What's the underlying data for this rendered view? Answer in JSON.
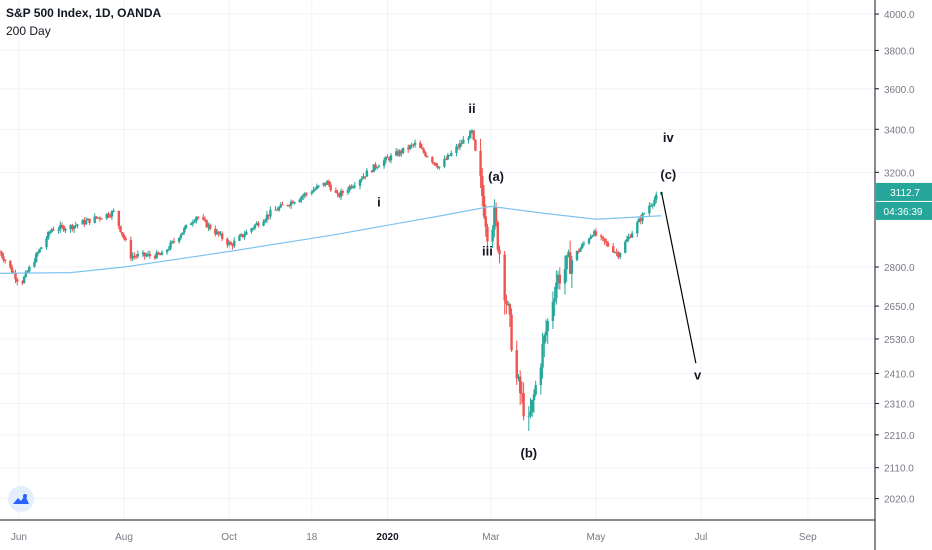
{
  "header": {
    "title": "S&P 500 Index, 1D, OANDA",
    "subtitle": "200 Day"
  },
  "colors": {
    "up": "#26a69a",
    "down": "#ef5350",
    "ma": "#7fc4ef",
    "arrow": "#000000",
    "price_tag": "#26a69a",
    "grid": "#f0f3fa",
    "axis_text": "#787b86"
  },
  "price_tag": {
    "value": "3112.7",
    "countdown": "04:36:39"
  },
  "chart_data": {
    "type": "candlestick",
    "title": "S&P 500 Index, 1D, OANDA",
    "indicator": "200 Day",
    "x_tick_labels": [
      "Jun",
      "Aug",
      "Oct",
      "18",
      "2020",
      "Mar",
      "May",
      "Jul",
      "Sep"
    ],
    "y_tick_labels": [
      "2020.0",
      "2110.0",
      "2210.0",
      "2310.0",
      "2410.0",
      "2530.0",
      "2650.0",
      "2800.0",
      "3200.0",
      "3400.0",
      "3600.0",
      "3800.0",
      "4000.0"
    ],
    "y_scale": "log",
    "y_range": [
      1960,
      4080
    ],
    "x_range": [
      "2019-05-21",
      "2020-10-10"
    ],
    "candles_approx": [
      {
        "date": "2019-05-21",
        "close": 2860
      },
      {
        "date": "2019-05-31",
        "close": 2752
      },
      {
        "date": "2019-06-03",
        "close": 2745
      },
      {
        "date": "2019-06-20",
        "close": 2954
      },
      {
        "date": "2019-07-01",
        "close": 2964
      },
      {
        "date": "2019-07-26",
        "close": 3025
      },
      {
        "date": "2019-08-05",
        "close": 2844
      },
      {
        "date": "2019-08-23",
        "close": 2847
      },
      {
        "date": "2019-09-12",
        "close": 3009
      },
      {
        "date": "2019-10-02",
        "close": 2887
      },
      {
        "date": "2019-10-25",
        "close": 3022
      },
      {
        "date": "2019-11-27",
        "close": 3154
      },
      {
        "date": "2019-12-03",
        "close": 3093
      },
      {
        "date": "2019-12-27",
        "close": 3240
      },
      {
        "date": "2020-01-17",
        "close": 3329
      },
      {
        "date": "2020-01-31",
        "close": 3225
      },
      {
        "date": "2020-02-19",
        "close": 3386
      },
      {
        "date": "2020-02-28",
        "close": 2954
      },
      {
        "date": "2020-03-03",
        "close": 3003
      },
      {
        "date": "2020-03-16",
        "close": 2386
      },
      {
        "date": "2020-03-23",
        "close": 2237
      },
      {
        "date": "2020-04-08",
        "close": 2749
      },
      {
        "date": "2020-04-29",
        "close": 2939
      },
      {
        "date": "2020-05-14",
        "close": 2852
      },
      {
        "date": "2020-06-01",
        "close": 3055
      },
      {
        "date": "2020-06-08",
        "close": 3112.7
      }
    ],
    "moving_average_200_approx": [
      {
        "date": "2019-05-21",
        "value": 2775
      },
      {
        "date": "2019-07-01",
        "value": 2778
      },
      {
        "date": "2019-08-01",
        "value": 2800
      },
      {
        "date": "2019-10-01",
        "value": 2862
      },
      {
        "date": "2019-12-01",
        "value": 2930
      },
      {
        "date": "2020-02-01",
        "value": 3010
      },
      {
        "date": "2020-03-01",
        "value": 3050
      },
      {
        "date": "2020-04-01",
        "value": 3020
      },
      {
        "date": "2020-05-01",
        "value": 2995
      },
      {
        "date": "2020-06-08",
        "value": 3010
      }
    ],
    "wave_labels": [
      {
        "text": "i",
        "date": "2019-12-27",
        "price": 3050
      },
      {
        "text": "ii",
        "date": "2020-02-19",
        "price": 3480
      },
      {
        "text": "iii",
        "date": "2020-02-28",
        "price": 2845
      },
      {
        "text": "(a)",
        "date": "2020-03-04",
        "price": 3160
      },
      {
        "text": "(b)",
        "date": "2020-03-23",
        "price": 2140
      },
      {
        "text": "iv",
        "date": "2020-06-12",
        "price": 3340
      },
      {
        "text": "(c)",
        "date": "2020-06-12",
        "price": 3170
      },
      {
        "text": "v",
        "date": "2020-06-29",
        "price": 2390
      }
    ],
    "projection_line": [
      {
        "date": "2020-06-08",
        "price": 3112.7
      },
      {
        "date": "2020-06-28",
        "price": 2445
      }
    ]
  }
}
